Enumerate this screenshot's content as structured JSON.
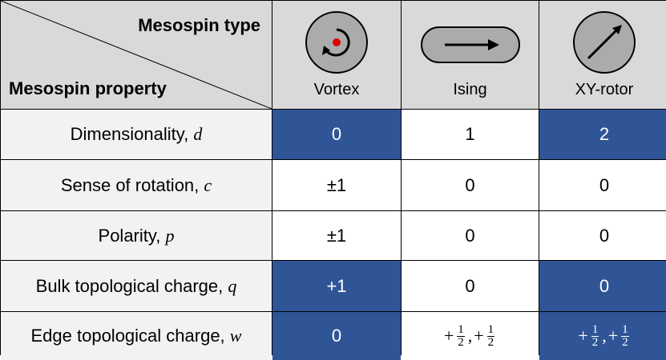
{
  "header": {
    "type_label": "Mesospin type",
    "property_label": "Mesospin property",
    "columns": [
      {
        "name": "Vortex",
        "icon": "vortex-icon"
      },
      {
        "name": "Ising",
        "icon": "ising-arrow-icon"
      },
      {
        "name": "XY-rotor",
        "icon": "xy-rotor-icon"
      }
    ]
  },
  "rows": [
    {
      "label": "Dimensionality, ",
      "symbol": "d",
      "values": [
        "0",
        "1",
        "2"
      ]
    },
    {
      "label": "Sense of rotation, ",
      "symbol": "c",
      "values": [
        "±1",
        "0",
        "0"
      ]
    },
    {
      "label": "Polarity, ",
      "symbol": "p",
      "values": [
        "±1",
        "0",
        "0"
      ]
    },
    {
      "label": "Bulk topological charge, ",
      "symbol": "q",
      "values": [
        "+1",
        "0",
        "0"
      ]
    },
    {
      "label": "Edge topological charge, ",
      "symbol": "w",
      "values": [
        "0",
        "+½, +½",
        "+½, +½"
      ]
    }
  ],
  "edge_fraction": {
    "sign": "+",
    "num": "1",
    "den": "2",
    "sep": ","
  },
  "colors": {
    "highlight": "#2f5597",
    "header_bg": "#d9d9d9",
    "label_bg": "#f2f2f2",
    "vortex_dot": "#e00000"
  }
}
